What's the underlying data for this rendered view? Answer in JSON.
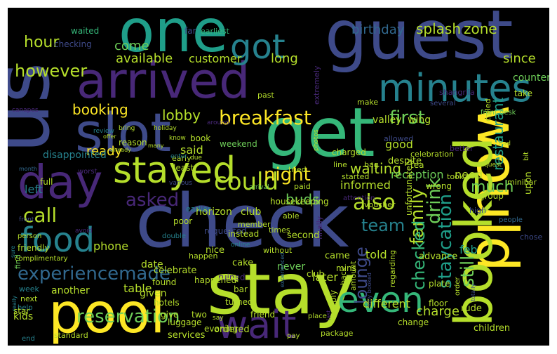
{
  "palette": [
    "#440154",
    "#482878",
    "#3e4a89",
    "#31688e",
    "#26828e",
    "#1f9e89",
    "#35b779",
    "#6ece58",
    "#b5de2b",
    "#fde725"
  ],
  "words": [
    {
      "text": "guest",
      "color": "#3e4a89"
    },
    {
      "text": "check",
      "color": "#3e4a89"
    },
    {
      "text": "one",
      "color": "#1f9e89"
    },
    {
      "text": "stay",
      "color": "#b5de2b"
    },
    {
      "text": "would",
      "color": "#fde725"
    },
    {
      "text": "booked",
      "color": "#b5de2b"
    },
    {
      "text": "us",
      "color": "#3e4a89"
    },
    {
      "text": "get",
      "color": "#35b779"
    },
    {
      "text": "arrived",
      "color": "#482878"
    },
    {
      "text": "slot",
      "color": "#3e4a89"
    },
    {
      "text": "day",
      "color": "#482878"
    },
    {
      "text": "pool",
      "color": "#fde725"
    },
    {
      "text": "got",
      "color": "#26828e"
    },
    {
      "text": "minutes",
      "color": "#26828e"
    },
    {
      "text": "stayed",
      "color": "#b5de2b"
    },
    {
      "text": "wait",
      "color": "#482878"
    },
    {
      "text": "food",
      "color": "#26828e"
    },
    {
      "text": "even",
      "color": "#35b779"
    },
    {
      "text": "breakfast",
      "color": "#fde725"
    },
    {
      "text": "experiencemade",
      "color": "#31688e"
    },
    {
      "text": "reservation",
      "color": "#6ece58"
    },
    {
      "text": "could",
      "color": "#b5de2b"
    },
    {
      "text": "night",
      "color": "#fde725"
    },
    {
      "text": "first",
      "color": "#6ece58"
    },
    {
      "text": "still",
      "color": "#6ece58"
    },
    {
      "text": "staycation",
      "color": "#1f9e89"
    },
    {
      "text": "drink",
      "color": "#6ece58"
    },
    {
      "text": "family",
      "color": "#b5de2b"
    },
    {
      "text": "team",
      "color": "#26828e"
    },
    {
      "text": "also",
      "color": "#b5de2b"
    },
    {
      "text": "asked",
      "color": "#482878"
    },
    {
      "text": "call",
      "color": "#b5de2b"
    },
    {
      "text": "lounge",
      "color": "#3e4a89"
    },
    {
      "text": "checked",
      "color": "#35b779"
    },
    {
      "text": "however",
      "color": "#b5de2b"
    },
    {
      "text": "hour",
      "color": "#b5de2b"
    },
    {
      "text": "booking",
      "color": "#fde725"
    },
    {
      "text": "lobby",
      "color": "#b5de2b"
    },
    {
      "text": "waiting",
      "color": "#b5de2b"
    },
    {
      "text": "restaurant",
      "color": "#1f9e89"
    },
    {
      "text": "much",
      "color": "#6ece58"
    },
    {
      "text": "birthday",
      "color": "#31688e"
    },
    {
      "text": "splash",
      "color": "#b5de2b"
    },
    {
      "text": "zone",
      "color": "#b5de2b"
    },
    {
      "text": "since",
      "color": "#b5de2b"
    },
    {
      "text": "available",
      "color": "#b5de2b"
    },
    {
      "text": "customer",
      "color": "#b5de2b"
    },
    {
      "text": "long",
      "color": "#b5de2b"
    },
    {
      "text": "come",
      "color": "#6ece58"
    },
    {
      "text": "ready",
      "color": "#fde725"
    },
    {
      "text": "said",
      "color": "#b5de2b"
    },
    {
      "text": "good",
      "color": "#b5de2b"
    },
    {
      "text": "reception",
      "color": "#6ece58"
    },
    {
      "text": "need",
      "color": "#b5de2b"
    },
    {
      "text": "informed",
      "color": "#b5de2b"
    },
    {
      "text": "buds",
      "color": "#6ece58"
    },
    {
      "text": "left",
      "color": "#26828e"
    },
    {
      "text": "disappointed",
      "color": "#26828e"
    },
    {
      "text": "told",
      "color": "#b5de2b"
    },
    {
      "text": "phone",
      "color": "#b5de2b"
    },
    {
      "text": "table",
      "color": "#b5de2b"
    },
    {
      "text": "another",
      "color": "#b5de2b"
    },
    {
      "text": "later",
      "color": "#b5de2b"
    },
    {
      "text": "charge",
      "color": "#b5de2b"
    },
    {
      "text": "feb",
      "color": "#1f9e89"
    },
    {
      "text": "different",
      "color": "#b5de2b"
    },
    {
      "text": "kids",
      "color": "#b5de2b"
    },
    {
      "text": "never",
      "color": "#6ece58"
    },
    {
      "text": "date",
      "color": "#b5de2b"
    },
    {
      "text": "given",
      "color": "#b5de2b"
    },
    {
      "text": "valley",
      "color": "#b5de2b"
    },
    {
      "text": "wing",
      "color": "#b5de2b"
    },
    {
      "text": "horizon",
      "color": "#b5de2b"
    },
    {
      "text": "club",
      "color": "#b5de2b"
    },
    {
      "text": "waited",
      "color": "#35b779"
    },
    {
      "text": "checking",
      "color": "#3e4a89"
    },
    {
      "text": "far",
      "color": "#3e4a89"
    },
    {
      "text": "earliest",
      "color": "#35b779"
    },
    {
      "text": "past",
      "color": "#b5de2b"
    },
    {
      "text": "counter",
      "color": "#6ece58"
    },
    {
      "text": "extremely",
      "color": "#482878"
    },
    {
      "text": "make",
      "color": "#b5de2b"
    },
    {
      "text": "shangrila",
      "color": "#482878"
    },
    {
      "text": "take",
      "color": "#b5de2b"
    },
    {
      "text": "canapes",
      "color": "#482878"
    },
    {
      "text": "around",
      "color": "#482878"
    },
    {
      "text": "several",
      "color": "#3e4a89"
    },
    {
      "text": "front desk",
      "color": "#6ece58"
    },
    {
      "text": "called",
      "color": "#b5de2b"
    },
    {
      "text": "bring",
      "color": "#b5de2b"
    },
    {
      "text": "holiday",
      "color": "#b5de2b"
    },
    {
      "text": "know",
      "color": "#b5de2b"
    },
    {
      "text": "bad",
      "color": "#b5de2b"
    },
    {
      "text": "review",
      "color": "#26828e"
    },
    {
      "text": "many",
      "color": "#b5de2b"
    },
    {
      "text": "celebration",
      "color": "#b5de2b"
    },
    {
      "text": "offer",
      "color": "#b5de2b"
    },
    {
      "text": "book",
      "color": "#b5de2b"
    },
    {
      "text": "charged",
      "color": "#b5de2b"
    },
    {
      "text": "already",
      "color": "#b5de2b"
    },
    {
      "text": "photos",
      "color": "#b5de2b"
    },
    {
      "text": "line",
      "color": "#b5de2b"
    },
    {
      "text": "better",
      "color": "#482878"
    },
    {
      "text": "allowed",
      "color": "#3e4a89"
    },
    {
      "text": "reason",
      "color": "#b5de2b"
    },
    {
      "text": "least",
      "color": "#b5de2b"
    },
    {
      "text": "month",
      "color": "#31688e"
    },
    {
      "text": "early",
      "color": "#b5de2b"
    },
    {
      "text": "due",
      "color": "#b5de2b"
    },
    {
      "text": "despite",
      "color": "#b5de2b"
    },
    {
      "text": "full",
      "color": "#b5de2b"
    },
    {
      "text": "started",
      "color": "#b5de2b"
    },
    {
      "text": "worst",
      "color": "#482878"
    },
    {
      "text": "weekend",
      "color": "#6ece58"
    },
    {
      "text": "tried",
      "color": "#b5de2b"
    },
    {
      "text": "bit",
      "color": "#b5de2b"
    },
    {
      "text": "minibar",
      "color": "#b5de2b"
    },
    {
      "text": "upon",
      "color": "#b5de2b"
    },
    {
      "text": "enter",
      "color": "#26828e"
    },
    {
      "text": "various",
      "color": "#3e4a89"
    },
    {
      "text": "tea",
      "color": "#b5de2b"
    },
    {
      "text": "request",
      "color": "#b5de2b"
    },
    {
      "text": "group",
      "color": "#b5de2b"
    },
    {
      "text": "front",
      "color": "#3e4a89"
    },
    {
      "text": "earlier",
      "color": "#26828e"
    },
    {
      "text": "bag",
      "color": "#b5de2b"
    },
    {
      "text": "took",
      "color": "#b5de2b"
    },
    {
      "text": "wrong",
      "color": "#b5de2b"
    },
    {
      "text": "arrival",
      "color": "#6ece58"
    },
    {
      "text": "attention",
      "color": "#482878"
    },
    {
      "text": "paid",
      "color": "#b5de2b"
    },
    {
      "text": "person",
      "color": "#b5de2b"
    },
    {
      "text": "double",
      "color": "#26828e"
    },
    {
      "text": "poor",
      "color": "#b5de2b"
    },
    {
      "text": "requested",
      "color": "#3e4a89"
    },
    {
      "text": "times",
      "color": "#b5de2b"
    },
    {
      "text": "housekeeping",
      "color": "#b5de2b"
    },
    {
      "text": "unfortunately",
      "color": "#b5de2b"
    },
    {
      "text": "find",
      "color": "#6ece58"
    },
    {
      "text": "instead",
      "color": "#b5de2b"
    },
    {
      "text": "member",
      "color": "#b5de2b"
    },
    {
      "text": "finally",
      "color": "#482878"
    },
    {
      "text": "high",
      "color": "#3e4a89"
    },
    {
      "text": "friendly",
      "color": "#b5de2b"
    },
    {
      "text": "able",
      "color": "#b5de2b"
    },
    {
      "text": "second",
      "color": "#b5de2b"
    },
    {
      "text": "avoid",
      "color": "#482878"
    },
    {
      "text": "voucher",
      "color": "#b5de2b"
    },
    {
      "text": "people",
      "color": "#31688e"
    },
    {
      "text": "nice",
      "color": "#b5de2b"
    },
    {
      "text": "online",
      "color": "#26828e"
    },
    {
      "text": "came",
      "color": "#b5de2b"
    },
    {
      "text": "advance",
      "color": "#b5de2b"
    },
    {
      "text": "complimentary",
      "color": "#b5de2b"
    },
    {
      "text": "happen",
      "color": "#b5de2b"
    },
    {
      "text": "cake",
      "color": "#b5de2b"
    },
    {
      "text": "without",
      "color": "#b5de2b"
    },
    {
      "text": "chose",
      "color": "#3e4a89"
    },
    {
      "text": "celebrate",
      "color": "#b5de2b"
    },
    {
      "text": "found",
      "color": "#b5de2b"
    },
    {
      "text": "ruined",
      "color": "#482878"
    },
    {
      "text": "mins",
      "color": "#b5de2b"
    },
    {
      "text": "sure",
      "color": "#26828e"
    },
    {
      "text": "happened",
      "color": "#b5de2b"
    },
    {
      "text": "experienced",
      "color": "#31688e"
    },
    {
      "text": "regarding",
      "color": "#b5de2b"
    },
    {
      "text": "week",
      "color": "#26828e"
    },
    {
      "text": "hotels",
      "color": "#b5de2b"
    },
    {
      "text": "bar",
      "color": "#b5de2b"
    },
    {
      "text": "amount",
      "color": "#b5de2b"
    },
    {
      "text": "totally",
      "color": "#3e4a89"
    },
    {
      "text": "fully booked",
      "color": "#3e4a89"
    },
    {
      "text": "next",
      "color": "#b5de2b"
    },
    {
      "text": "turned",
      "color": "#b5de2b"
    },
    {
      "text": "club",
      "color": "#b5de2b"
    },
    {
      "text": "plate",
      "color": "#b5de2b"
    },
    {
      "text": "help",
      "color": "#26828e"
    },
    {
      "text": "say",
      "color": "#b5de2b"
    },
    {
      "text": "back",
      "color": "#b5de2b"
    },
    {
      "text": "order",
      "color": "#b5de2b"
    },
    {
      "text": "rude",
      "color": "#b5de2b"
    },
    {
      "text": "star",
      "color": "#b5de2b"
    },
    {
      "text": "give",
      "color": "#b5de2b"
    },
    {
      "text": "two",
      "color": "#b5de2b"
    },
    {
      "text": "place",
      "color": "#b5de2b"
    },
    {
      "text": "luggage",
      "color": "#b5de2b"
    },
    {
      "text": "friend",
      "color": "#b5de2b"
    },
    {
      "text": "reply",
      "color": "#b5de2b"
    },
    {
      "text": "floor",
      "color": "#b5de2b"
    },
    {
      "text": "really",
      "color": "#26828e"
    },
    {
      "text": "evening",
      "color": "#b5de2b"
    },
    {
      "text": "pay",
      "color": "#b5de2b"
    },
    {
      "text": "package",
      "color": "#b5de2b"
    },
    {
      "text": "children",
      "color": "#b5de2b"
    },
    {
      "text": "standard",
      "color": "#b5de2b"
    },
    {
      "text": "services",
      "color": "#b5de2b"
    },
    {
      "text": "ordered",
      "color": "#b5de2b"
    },
    {
      "text": "last",
      "color": "#482878"
    },
    {
      "text": "change",
      "color": "#b5de2b"
    },
    {
      "text": "end",
      "color": "#26828e"
    }
  ]
}
